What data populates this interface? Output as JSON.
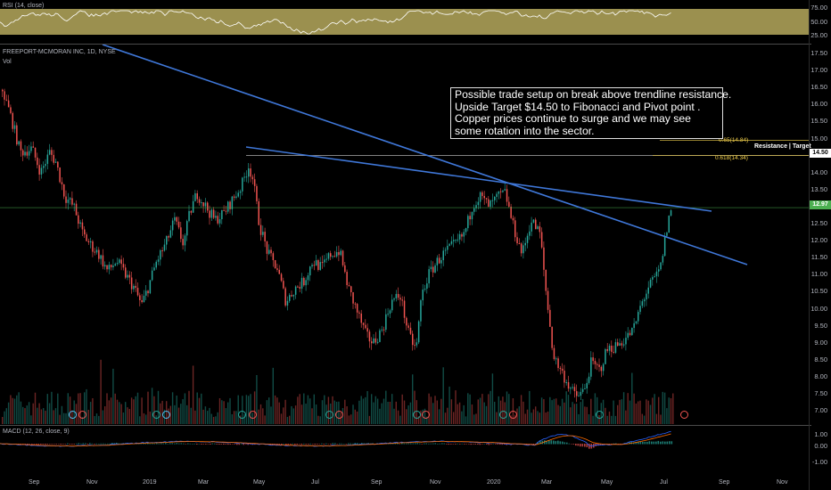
{
  "colors": {
    "up": "#26a69a",
    "down": "#ef5350",
    "trendline": "#3f77d8",
    "fib": "#f2d04c",
    "rsi_band": "#cfc06a",
    "macd_line": "#2962ff",
    "signal_line": "#ff6d00",
    "last_price_line": "#4caf50"
  },
  "rsi": {
    "title": "RSI (14, close)",
    "levels": [
      "75.00",
      "50.00",
      "25.00"
    ]
  },
  "main": {
    "symbol_title": "FREEPORT-MCMORAN INC, 1D, NYSE",
    "vol_label": "Vol",
    "price_axis": [
      "17.50",
      "17.00",
      "16.50",
      "16.00",
      "15.50",
      "15.00",
      "14.00",
      "13.50",
      "13.00",
      "12.50",
      "12.00",
      "11.50",
      "11.00",
      "10.50",
      "10.00",
      "9.50",
      "9.00",
      "8.50",
      "8.00",
      "7.50",
      "7.00"
    ],
    "price_tag_target": "14.50",
    "price_tag_last": "12.97",
    "fib_618": "0.618(14.34)",
    "fib_65": "0.65(14.84)",
    "resistance_label": "Resistance | Target",
    "annotation": "Possible trade setup on break above trendline resistance.\nUpside Target $14.50 to Fibonacci and Pivot point .\nCopper prices continue to surge and we may see\nsome rotation into the sector."
  },
  "macd": {
    "title": "MACD (12, 26, close, 9)",
    "levels": [
      "1.00",
      "0.00",
      "-1.00"
    ]
  },
  "time_axis": [
    "Sep",
    "Nov",
    "2019",
    "Mar",
    "May",
    "Jul",
    "Sep",
    "Nov",
    "2020",
    "Mar",
    "May",
    "Jul",
    "Sep",
    "Nov"
  ],
  "chart_data": {
    "type": "candlestick",
    "title": "FREEPORT-MCMORAN INC, 1D, NYSE",
    "ylim": [
      6.75,
      17.8
    ],
    "close_path": [
      [
        0,
        16.6
      ],
      [
        12,
        15.6
      ],
      [
        22,
        14.6
      ],
      [
        35,
        14.7
      ],
      [
        45,
        14.0
      ],
      [
        55,
        14.6
      ],
      [
        62,
        14.3
      ],
      [
        72,
        13.3
      ],
      [
        82,
        13.0
      ],
      [
        92,
        12.2
      ],
      [
        100,
        11.9
      ],
      [
        110,
        11.6
      ],
      [
        120,
        11.1
      ],
      [
        130,
        11.4
      ],
      [
        140,
        11.0
      ],
      [
        150,
        10.6
      ],
      [
        158,
        10.1
      ],
      [
        165,
        10.6
      ],
      [
        175,
        11.4
      ],
      [
        185,
        11.9
      ],
      [
        195,
        12.6
      ],
      [
        205,
        11.9
      ],
      [
        212,
        12.8
      ],
      [
        220,
        13.4
      ],
      [
        230,
        13.0
      ],
      [
        240,
        12.6
      ],
      [
        250,
        12.8
      ],
      [
        260,
        13.2
      ],
      [
        270,
        13.6
      ],
      [
        278,
        14.2
      ],
      [
        283,
        13.8
      ],
      [
        290,
        12.5
      ],
      [
        300,
        11.6
      ],
      [
        310,
        11.2
      ],
      [
        320,
        10.2
      ],
      [
        330,
        10.6
      ],
      [
        340,
        10.8
      ],
      [
        350,
        11.4
      ],
      [
        360,
        11.2
      ],
      [
        370,
        11.6
      ],
      [
        380,
        11.7
      ],
      [
        390,
        10.6
      ],
      [
        400,
        9.9
      ],
      [
        410,
        9.2
      ],
      [
        418,
        9.0
      ],
      [
        428,
        9.4
      ],
      [
        438,
        10.2
      ],
      [
        448,
        10.4
      ],
      [
        458,
        9.2
      ],
      [
        466,
        8.8
      ],
      [
        472,
        10.4
      ],
      [
        480,
        11.0
      ],
      [
        490,
        11.4
      ],
      [
        500,
        11.7
      ],
      [
        510,
        11.9
      ],
      [
        520,
        12.2
      ],
      [
        530,
        13.1
      ],
      [
        538,
        13.3
      ],
      [
        548,
        13.0
      ],
      [
        558,
        13.3
      ],
      [
        566,
        13.4
      ],
      [
        575,
        12.4
      ],
      [
        585,
        11.6
      ],
      [
        595,
        12.6
      ],
      [
        605,
        12.2
      ],
      [
        612,
        10.4
      ],
      [
        620,
        8.6
      ],
      [
        628,
        8.2
      ],
      [
        636,
        7.8
      ],
      [
        645,
        7.4
      ],
      [
        655,
        7.6
      ],
      [
        662,
        8.4
      ],
      [
        672,
        8.2
      ],
      [
        680,
        8.8
      ],
      [
        690,
        8.9
      ],
      [
        700,
        9.1
      ],
      [
        710,
        9.4
      ],
      [
        718,
        10.1
      ],
      [
        726,
        10.6
      ],
      [
        734,
        10.9
      ],
      [
        740,
        11.2
      ],
      [
        746,
        12.2
      ],
      [
        752,
        12.97
      ]
    ],
    "annotations": [
      "Resistance | Target",
      "0.618(14.34)",
      "0.65(14.84)"
    ]
  }
}
